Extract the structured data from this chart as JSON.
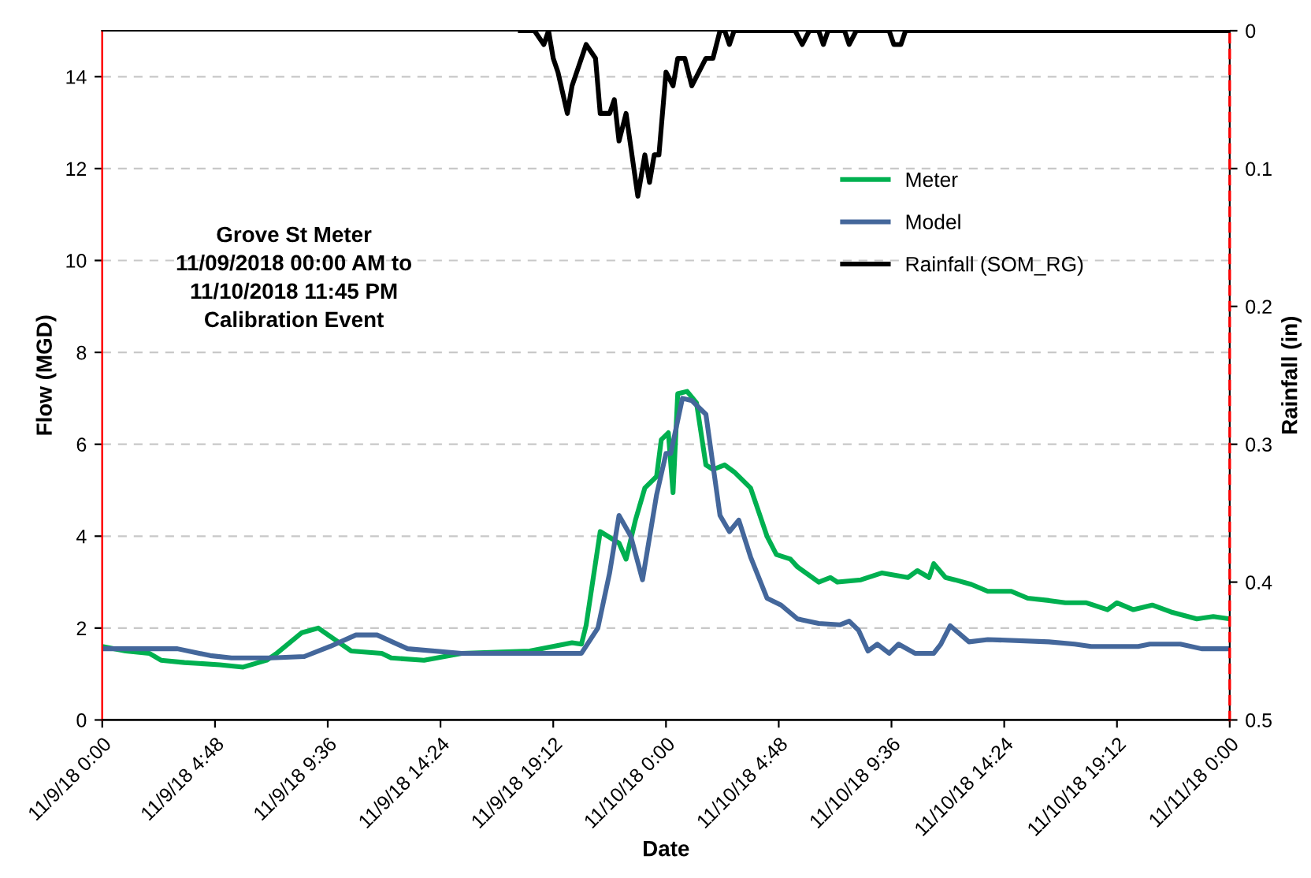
{
  "chart_data": {
    "type": "line",
    "xlabel": "Date",
    "ylabel": "Flow (MGD)",
    "y2label": "Rainfall (in)",
    "annotations": [
      "Grove St Meter\n11/09/2018 00:00 AM to\n11/10/2018 11:45 PM\nCalibration Event"
    ],
    "xlim": [
      "2018-11-09T00:00",
      "2018-11-11T00:00"
    ],
    "xticks": [
      {
        "value": "2018-11-09T00:00",
        "label": "11/9/18 0:00"
      },
      {
        "value": "2018-11-09T04:48",
        "label": "11/9/18 4:48"
      },
      {
        "value": "2018-11-09T09:36",
        "label": "11/9/18 9:36"
      },
      {
        "value": "2018-11-09T14:24",
        "label": "11/9/18 14:24"
      },
      {
        "value": "2018-11-09T19:12",
        "label": "11/9/18 19:12"
      },
      {
        "value": "2018-11-10T00:00",
        "label": "11/10/18 0:00"
      },
      {
        "value": "2018-11-10T04:48",
        "label": "11/10/18 4:48"
      },
      {
        "value": "2018-11-10T09:36",
        "label": "11/10/18 9:36"
      },
      {
        "value": "2018-11-10T14:24",
        "label": "11/10/18 14:24"
      },
      {
        "value": "2018-11-10T19:12",
        "label": "11/10/18 19:12"
      },
      {
        "value": "2018-11-11T00:00",
        "label": "11/11/18 0:00"
      }
    ],
    "ylim": [
      0,
      15
    ],
    "yticks": [
      0,
      2,
      4,
      6,
      8,
      10,
      12,
      14
    ],
    "y2lim": [
      0.5,
      0
    ],
    "y2ticks": [
      0,
      0.1,
      0.2,
      0.3,
      0.4,
      0.5
    ],
    "grid": "y",
    "legend": "right",
    "marker": "none",
    "line_style": "solid",
    "series": [
      {
        "name": "Meter",
        "color": "#00b050",
        "x": [
          "2018-11-09T00:00",
          "2018-11-09T01:00",
          "2018-11-09T02:00",
          "2018-11-09T02:30",
          "2018-11-09T03:30",
          "2018-11-09T05:00",
          "2018-11-09T06:00",
          "2018-11-09T07:00",
          "2018-11-09T07:24",
          "2018-11-09T08:30",
          "2018-11-09T09:12",
          "2018-11-09T10:36",
          "2018-11-09T11:54",
          "2018-11-09T12:18",
          "2018-11-09T13:42",
          "2018-11-09T15:18",
          "2018-11-09T18:12",
          "2018-11-09T20:00",
          "2018-11-09T20:24",
          "2018-11-09T20:36",
          "2018-11-09T21:12",
          "2018-11-09T22:00",
          "2018-11-09T22:18",
          "2018-11-09T22:42",
          "2018-11-09T23:06",
          "2018-11-09T23:36",
          "2018-11-09T23:48",
          "2018-11-10T00:06",
          "2018-11-10T00:18",
          "2018-11-10T00:30",
          "2018-11-10T00:54",
          "2018-11-10T01:18",
          "2018-11-10T01:42",
          "2018-11-10T02:00",
          "2018-11-10T02:30",
          "2018-11-10T02:54",
          "2018-11-10T03:36",
          "2018-11-10T04:18",
          "2018-11-10T04:42",
          "2018-11-10T05:18",
          "2018-11-10T05:36",
          "2018-11-10T06:30",
          "2018-11-10T07:00",
          "2018-11-10T07:18",
          "2018-11-10T08:18",
          "2018-11-10T09:12",
          "2018-11-10T10:18",
          "2018-11-10T10:42",
          "2018-11-10T11:12",
          "2018-11-10T11:24",
          "2018-11-10T11:54",
          "2018-11-10T12:18",
          "2018-11-10T13:00",
          "2018-11-10T13:42",
          "2018-11-10T14:42",
          "2018-11-10T15:24",
          "2018-11-10T16:18",
          "2018-11-10T17:00",
          "2018-11-10T17:54",
          "2018-11-10T18:48",
          "2018-11-10T19:12",
          "2018-11-10T19:54",
          "2018-11-10T20:42",
          "2018-11-10T21:30",
          "2018-11-10T22:36",
          "2018-11-10T23:18",
          "2018-11-11T00:00"
        ],
        "values": [
          1.6,
          1.5,
          1.45,
          1.3,
          1.25,
          1.2,
          1.15,
          1.3,
          1.44,
          1.9,
          2.0,
          1.5,
          1.45,
          1.35,
          1.3,
          1.45,
          1.5,
          1.68,
          1.65,
          2.06,
          4.1,
          3.85,
          3.5,
          4.35,
          5.05,
          5.3,
          6.1,
          6.25,
          4.95,
          7.1,
          7.15,
          6.9,
          5.55,
          5.45,
          5.55,
          5.4,
          5.05,
          4.0,
          3.6,
          3.5,
          3.33,
          3.0,
          3.1,
          3.0,
          3.05,
          3.2,
          3.1,
          3.25,
          3.1,
          3.4,
          3.1,
          3.05,
          2.95,
          2.8,
          2.8,
          2.65,
          2.6,
          2.55,
          2.55,
          2.4,
          2.55,
          2.4,
          2.5,
          2.35,
          2.2,
          2.25,
          2.2
        ]
      },
      {
        "name": "Model",
        "color": "#44679b",
        "x": [
          "2018-11-09T00:00",
          "2018-11-09T03:12",
          "2018-11-09T04:36",
          "2018-11-09T05:30",
          "2018-11-09T07:12",
          "2018-11-09T08:36",
          "2018-11-09T09:42",
          "2018-11-09T10:48",
          "2018-11-09T11:42",
          "2018-11-09T13:00",
          "2018-11-09T15:18",
          "2018-11-09T20:24",
          "2018-11-09T21:06",
          "2018-11-09T21:36",
          "2018-11-09T22:00",
          "2018-11-09T22:30",
          "2018-11-09T23:00",
          "2018-11-09T23:36",
          "2018-11-10T00:00",
          "2018-11-10T00:12",
          "2018-11-10T00:42",
          "2018-11-10T01:06",
          "2018-11-10T01:42",
          "2018-11-10T02:18",
          "2018-11-10T02:42",
          "2018-11-10T03:06",
          "2018-11-10T03:36",
          "2018-11-10T04:18",
          "2018-11-10T04:54",
          "2018-11-10T05:36",
          "2018-11-10T06:30",
          "2018-11-10T07:24",
          "2018-11-10T07:48",
          "2018-11-10T08:12",
          "2018-11-10T08:36",
          "2018-11-10T09:00",
          "2018-11-10T09:30",
          "2018-11-10T09:54",
          "2018-11-10T10:36",
          "2018-11-10T11:24",
          "2018-11-10T11:42",
          "2018-11-10T12:06",
          "2018-11-10T12:54",
          "2018-11-10T13:42",
          "2018-11-10T16:18",
          "2018-11-10T17:24",
          "2018-11-10T18:06",
          "2018-11-10T20:06",
          "2018-11-10T20:36",
          "2018-11-10T21:54",
          "2018-11-10T22:48",
          "2018-11-11T00:00"
        ],
        "values": [
          1.55,
          1.55,
          1.4,
          1.35,
          1.35,
          1.38,
          1.6,
          1.85,
          1.85,
          1.55,
          1.45,
          1.45,
          2.0,
          3.2,
          4.45,
          4.0,
          3.05,
          4.9,
          5.8,
          5.8,
          7.0,
          6.95,
          6.65,
          4.45,
          4.1,
          4.35,
          3.55,
          2.65,
          2.5,
          2.2,
          2.1,
          2.07,
          2.15,
          1.95,
          1.5,
          1.65,
          1.45,
          1.65,
          1.45,
          1.45,
          1.65,
          2.05,
          1.7,
          1.75,
          1.7,
          1.65,
          1.6,
          1.6,
          1.65,
          1.65,
          1.55,
          1.55
        ]
      },
      {
        "name": "Rainfall (SOM_RG)",
        "color": "#000000",
        "axis": "y2",
        "x": [
          "2018-11-09T17:48",
          "2018-11-09T18:24",
          "2018-11-09T18:48",
          "2018-11-09T19:00",
          "2018-11-09T19:12",
          "2018-11-09T19:24",
          "2018-11-09T19:48",
          "2018-11-09T20:00",
          "2018-11-09T20:36",
          "2018-11-09T21:00",
          "2018-11-09T21:12",
          "2018-11-09T21:36",
          "2018-11-09T21:48",
          "2018-11-09T22:00",
          "2018-11-09T22:18",
          "2018-11-09T22:48",
          "2018-11-09T23:06",
          "2018-11-09T23:18",
          "2018-11-09T23:30",
          "2018-11-09T23:42",
          "2018-11-10T00:00",
          "2018-11-10T00:18",
          "2018-11-10T00:30",
          "2018-11-10T00:48",
          "2018-11-10T01:06",
          "2018-11-10T01:42",
          "2018-11-10T02:00",
          "2018-11-10T02:18",
          "2018-11-10T02:30",
          "2018-11-10T02:42",
          "2018-11-10T02:54",
          "2018-11-10T05:30",
          "2018-11-10T05:48",
          "2018-11-10T06:06",
          "2018-11-10T06:30",
          "2018-11-10T06:42",
          "2018-11-10T06:54",
          "2018-11-10T07:36",
          "2018-11-10T07:48",
          "2018-11-10T08:06",
          "2018-11-10T09:30",
          "2018-11-10T09:42",
          "2018-11-10T10:00",
          "2018-11-10T10:12",
          "2018-11-11T00:00"
        ],
        "values": [
          0,
          0,
          0.01,
          0,
          0.02,
          0.03,
          0.06,
          0.04,
          0.01,
          0.02,
          0.06,
          0.06,
          0.05,
          0.08,
          0.06,
          0.12,
          0.09,
          0.11,
          0.09,
          0.09,
          0.03,
          0.04,
          0.02,
          0.02,
          0.04,
          0.02,
          0.02,
          0,
          0,
          0.01,
          0,
          0,
          0.01,
          0,
          0,
          0.01,
          0,
          0,
          0.01,
          0,
          0,
          0.01,
          0.01,
          0,
          0
        ]
      }
    ]
  }
}
